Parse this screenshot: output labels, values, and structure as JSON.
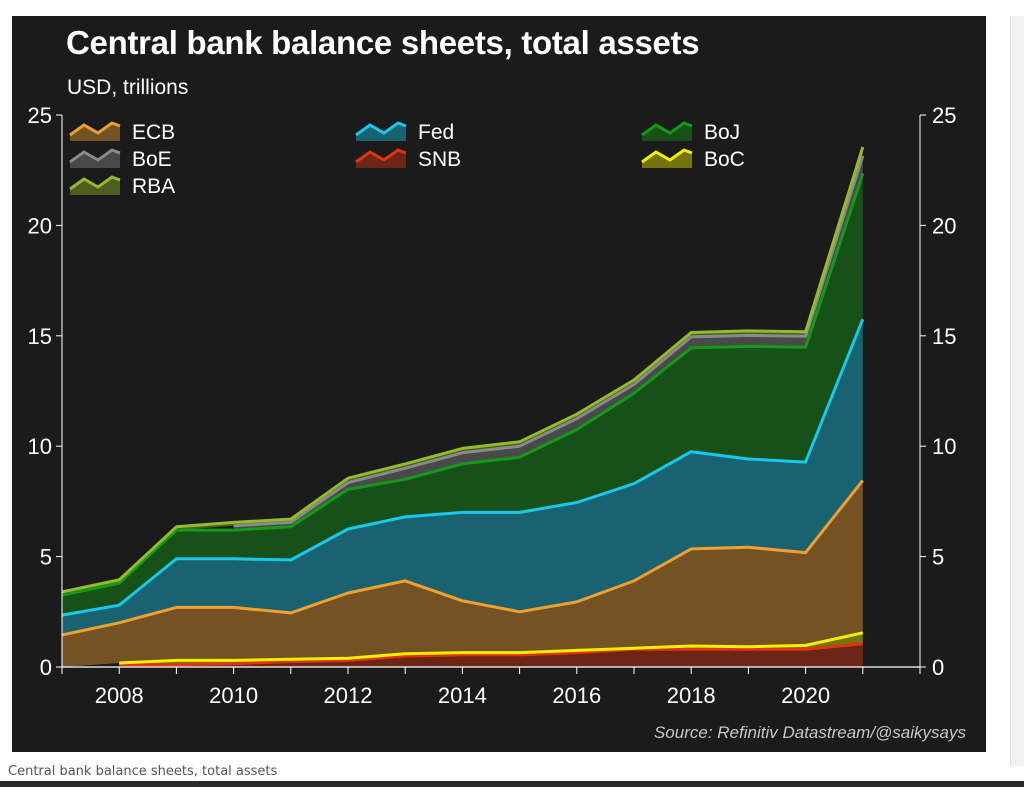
{
  "chart_data": {
    "type": "area",
    "stacked": true,
    "title": "Central bank balance sheets, total assets",
    "subtitle": "USD, trillions",
    "source": "Source: Refinitiv Datastream/@saikysays",
    "xlabel": "",
    "ylabel": "",
    "x": [
      2007,
      2008,
      2009,
      2010,
      2011,
      2012,
      2013,
      2014,
      2015,
      2016,
      2017,
      2018,
      2019,
      2020,
      2021
    ],
    "xlim": [
      2007,
      2022
    ],
    "ylim": [
      0,
      25
    ],
    "x_ticks": [
      2008,
      2010,
      2012,
      2014,
      2016,
      2018,
      2020
    ],
    "y_ticks": [
      0,
      5,
      10,
      15,
      20,
      25
    ],
    "y_axis_both_sides": true,
    "grid": false,
    "legend_position": "top-left, three columns",
    "series": [
      {
        "name": "SNB",
        "color": "#e03410",
        "values": [
          null,
          0.1,
          0.1,
          0.15,
          0.25,
          0.3,
          0.5,
          0.55,
          0.55,
          0.65,
          0.8,
          0.8,
          0.8,
          0.8,
          1.05
        ]
      },
      {
        "name": "BoC",
        "color": "#f0f000",
        "values": [
          null,
          0.08,
          0.2,
          0.15,
          0.1,
          0.1,
          0.1,
          0.1,
          0.1,
          0.1,
          0.05,
          0.15,
          0.12,
          0.18,
          0.5
        ]
      },
      {
        "name": "ECB",
        "color": "#f0a030",
        "values": [
          1.45,
          1.82,
          2.4,
          2.4,
          2.1,
          2.95,
          3.3,
          2.35,
          1.85,
          2.2,
          3.05,
          4.4,
          4.5,
          4.2,
          6.9
        ]
      },
      {
        "name": "Fed",
        "color": "#19c8ea",
        "values": [
          0.9,
          0.8,
          2.2,
          2.2,
          2.4,
          2.9,
          2.9,
          4.0,
          4.5,
          4.5,
          4.4,
          4.4,
          4.0,
          4.1,
          7.3
        ]
      },
      {
        "name": "BoJ",
        "color": "#139a18",
        "values": [
          0.9,
          1.0,
          1.3,
          1.3,
          1.5,
          1.8,
          1.7,
          2.2,
          2.5,
          3.3,
          4.1,
          4.7,
          5.1,
          5.2,
          6.6
        ]
      },
      {
        "name": "BoE",
        "color": "#8a8a8a",
        "values": [
          null,
          null,
          null,
          0.2,
          0.2,
          0.3,
          0.5,
          0.5,
          0.5,
          0.5,
          0.4,
          0.5,
          0.5,
          0.5,
          0.8
        ]
      },
      {
        "name": "RBA",
        "color": "#92bb2e",
        "values": [
          0.15,
          0.15,
          0.15,
          0.15,
          0.15,
          0.2,
          0.2,
          0.2,
          0.2,
          0.2,
          0.2,
          0.2,
          0.2,
          0.2,
          0.4
        ]
      }
    ],
    "legend": [
      "ECB",
      "Fed",
      "BoJ",
      "BoE",
      "SNB",
      "BoC",
      "RBA"
    ]
  },
  "caption": "Central bank balance sheets, total assets"
}
